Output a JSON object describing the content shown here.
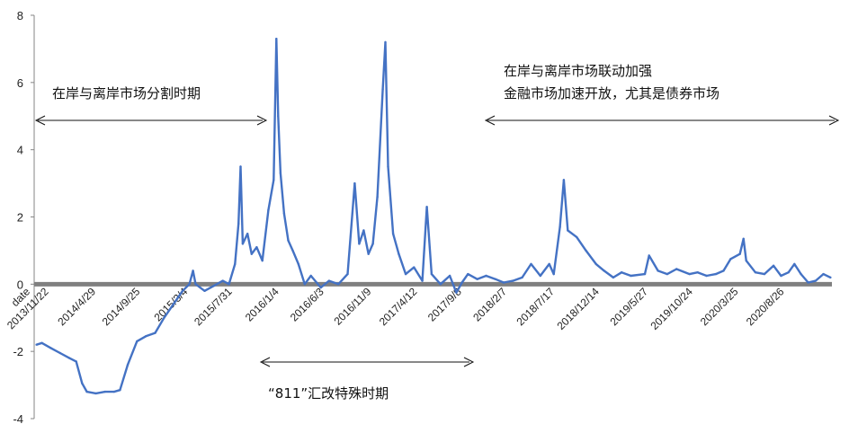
{
  "chart_data": {
    "type": "line",
    "ylim": [
      -4,
      8
    ],
    "yticks": [
      8,
      6,
      4,
      2,
      0,
      -2,
      -4
    ],
    "xlim": [
      "2013-10-15",
      "2021-03-15"
    ],
    "zero_line": true,
    "x_axis_label": "date",
    "xtick_labels": [
      {
        "label": "2013/11/22",
        "date": "2013-11-22"
      },
      {
        "label": "2014/4/29",
        "date": "2014-04-29"
      },
      {
        "label": "2014/9/25",
        "date": "2014-09-25"
      },
      {
        "label": "2015/3/4",
        "date": "2015-03-04"
      },
      {
        "label": "2015/7/31",
        "date": "2015-07-31"
      },
      {
        "label": "2016/1/4",
        "date": "2016-01-04"
      },
      {
        "label": "2016/6/3",
        "date": "2016-06-03"
      },
      {
        "label": "2016/11/9",
        "date": "2016-11-09"
      },
      {
        "label": "2017/4/12",
        "date": "2017-04-12"
      },
      {
        "label": "2017/9/8",
        "date": "2017-09-08"
      },
      {
        "label": "2018/2/7",
        "date": "2018-02-07"
      },
      {
        "label": "2018/7/17",
        "date": "2018-07-17"
      },
      {
        "label": "2018/12/14",
        "date": "2018-12-14"
      },
      {
        "label": "2019/5/27",
        "date": "2019-05-27"
      },
      {
        "label": "2019/10/24",
        "date": "2019-10-24"
      },
      {
        "label": "2020/3/25",
        "date": "2020-03-25"
      },
      {
        "label": "2020/8/26",
        "date": "2020-08-26"
      }
    ],
    "series": [
      {
        "color": "#4472c4",
        "points": [
          [
            "2013-10-23",
            -1.8
          ],
          [
            "2013-11-10",
            -1.75
          ],
          [
            "2013-12-10",
            -1.9
          ],
          [
            "2014-01-10",
            -2.05
          ],
          [
            "2014-02-10",
            -2.2
          ],
          [
            "2014-03-05",
            -2.3
          ],
          [
            "2014-03-25",
            -2.95
          ],
          [
            "2014-04-10",
            -3.2
          ],
          [
            "2014-05-10",
            -3.25
          ],
          [
            "2014-06-10",
            -3.2
          ],
          [
            "2014-07-10",
            -3.2
          ],
          [
            "2014-07-30",
            -3.15
          ],
          [
            "2014-08-25",
            -2.4
          ],
          [
            "2014-09-25",
            -1.7
          ],
          [
            "2014-10-25",
            -1.55
          ],
          [
            "2014-11-25",
            -1.45
          ],
          [
            "2014-12-25",
            -1.0
          ],
          [
            "2015-01-25",
            -0.6
          ],
          [
            "2015-02-25",
            -0.2
          ],
          [
            "2015-03-20",
            0.0
          ],
          [
            "2015-04-01",
            0.4
          ],
          [
            "2015-04-10",
            0.0
          ],
          [
            "2015-05-10",
            -0.2
          ],
          [
            "2015-06-10",
            -0.05
          ],
          [
            "2015-07-10",
            0.1
          ],
          [
            "2015-07-31",
            0.0
          ],
          [
            "2015-08-20",
            0.6
          ],
          [
            "2015-09-01",
            1.8
          ],
          [
            "2015-09-08",
            3.5
          ],
          [
            "2015-09-15",
            1.2
          ],
          [
            "2015-10-01",
            1.5
          ],
          [
            "2015-10-15",
            0.9
          ],
          [
            "2015-11-01",
            1.1
          ],
          [
            "2015-11-20",
            0.7
          ],
          [
            "2015-12-10",
            2.2
          ],
          [
            "2015-12-28",
            3.1
          ],
          [
            "2016-01-06",
            7.3
          ],
          [
            "2016-01-12",
            5.0
          ],
          [
            "2016-01-20",
            3.3
          ],
          [
            "2016-02-01",
            2.1
          ],
          [
            "2016-02-15",
            1.3
          ],
          [
            "2016-03-01",
            1.0
          ],
          [
            "2016-03-20",
            0.6
          ],
          [
            "2016-04-10",
            0.0
          ],
          [
            "2016-05-01",
            0.25
          ],
          [
            "2016-06-03",
            -0.1
          ],
          [
            "2016-07-01",
            0.1
          ],
          [
            "2016-08-01",
            0.0
          ],
          [
            "2016-09-01",
            0.3
          ],
          [
            "2016-09-25",
            3.0
          ],
          [
            "2016-10-10",
            1.2
          ],
          [
            "2016-10-25",
            1.6
          ],
          [
            "2016-11-10",
            0.9
          ],
          [
            "2016-11-25",
            1.2
          ],
          [
            "2016-12-10",
            2.6
          ],
          [
            "2016-12-28",
            5.8
          ],
          [
            "2017-01-06",
            7.2
          ],
          [
            "2017-01-15",
            3.5
          ],
          [
            "2017-02-01",
            1.5
          ],
          [
            "2017-02-20",
            0.9
          ],
          [
            "2017-03-15",
            0.3
          ],
          [
            "2017-04-12",
            0.5
          ],
          [
            "2017-05-10",
            0.1
          ],
          [
            "2017-05-25",
            2.3
          ],
          [
            "2017-06-10",
            0.3
          ],
          [
            "2017-07-10",
            0.0
          ],
          [
            "2017-08-10",
            0.25
          ],
          [
            "2017-09-01",
            -0.25
          ],
          [
            "2017-09-20",
            0.05
          ],
          [
            "2017-10-10",
            0.3
          ],
          [
            "2017-11-10",
            0.15
          ],
          [
            "2017-12-10",
            0.25
          ],
          [
            "2018-01-10",
            0.15
          ],
          [
            "2018-02-07",
            0.05
          ],
          [
            "2018-03-10",
            0.1
          ],
          [
            "2018-04-10",
            0.2
          ],
          [
            "2018-05-10",
            0.6
          ],
          [
            "2018-06-10",
            0.25
          ],
          [
            "2018-07-10",
            0.6
          ],
          [
            "2018-07-25",
            0.3
          ],
          [
            "2018-08-15",
            1.7
          ],
          [
            "2018-08-28",
            3.1
          ],
          [
            "2018-09-10",
            1.6
          ],
          [
            "2018-10-10",
            1.4
          ],
          [
            "2018-11-10",
            1.0
          ],
          [
            "2018-12-14",
            0.6
          ],
          [
            "2019-01-10",
            0.4
          ],
          [
            "2019-02-10",
            0.2
          ],
          [
            "2019-03-10",
            0.35
          ],
          [
            "2019-04-10",
            0.25
          ],
          [
            "2019-05-27",
            0.3
          ],
          [
            "2019-06-10",
            0.85
          ],
          [
            "2019-07-10",
            0.4
          ],
          [
            "2019-08-10",
            0.3
          ],
          [
            "2019-09-10",
            0.45
          ],
          [
            "2019-10-24",
            0.3
          ],
          [
            "2019-11-20",
            0.35
          ],
          [
            "2019-12-20",
            0.25
          ],
          [
            "2020-01-20",
            0.3
          ],
          [
            "2020-02-15",
            0.4
          ],
          [
            "2020-03-10",
            0.75
          ],
          [
            "2020-04-10",
            0.9
          ],
          [
            "2020-04-22",
            1.35
          ],
          [
            "2020-05-01",
            0.7
          ],
          [
            "2020-06-01",
            0.35
          ],
          [
            "2020-07-01",
            0.3
          ],
          [
            "2020-08-01",
            0.55
          ],
          [
            "2020-08-26",
            0.25
          ],
          [
            "2020-09-20",
            0.35
          ],
          [
            "2020-10-10",
            0.6
          ],
          [
            "2020-11-01",
            0.3
          ],
          [
            "2020-11-25",
            0.05
          ],
          [
            "2020-12-20",
            0.1
          ],
          [
            "2021-01-15",
            0.3
          ],
          [
            "2021-02-08",
            0.2
          ]
        ]
      }
    ],
    "annotations": [
      {
        "id": "a1",
        "lines": [
          "在岸与离岸市场分割时期"
        ]
      },
      {
        "id": "a2",
        "lines": [
          "在岸与离岸市场联动加强",
          "金融市场加速开放，尤其是债券市场"
        ]
      },
      {
        "id": "a3",
        "lines": [
          "“811”汇改特殊时期"
        ]
      }
    ],
    "colors": {
      "series": "#4472c4",
      "zero_line": "#808080",
      "axis": "#868686"
    }
  }
}
